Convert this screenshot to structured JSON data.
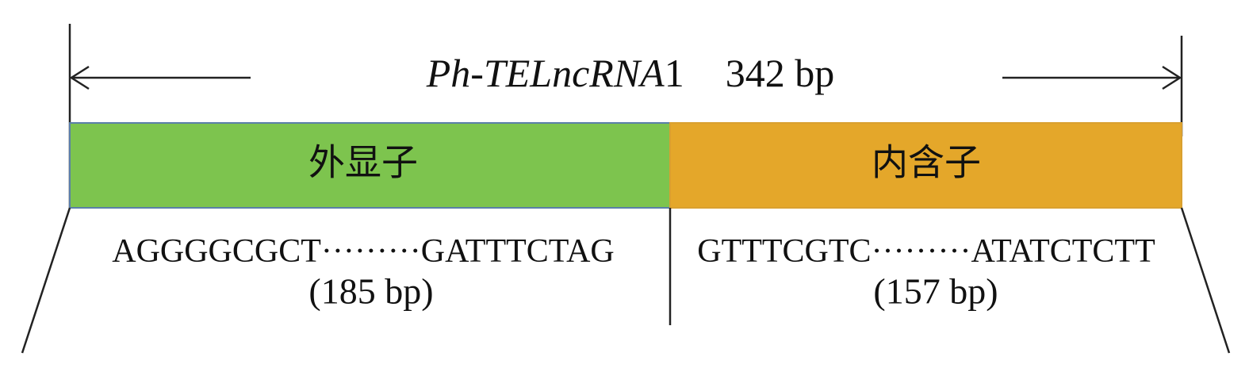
{
  "title": {
    "gene_name": "Ph-TELncRNA",
    "gene_suffix": "1",
    "length": "342 bp"
  },
  "segments": [
    {
      "label": "外显子",
      "sequence_start": "AGGGGCGCT",
      "dots": "·········",
      "sequence_end": "GATTTCTAG",
      "length": "(185 bp)"
    },
    {
      "label": "内含子",
      "sequence_start": "GTTTCGTC",
      "dots": "·········",
      "sequence_end": "ATATCTCTT",
      "length": "(157 bp)"
    }
  ]
}
